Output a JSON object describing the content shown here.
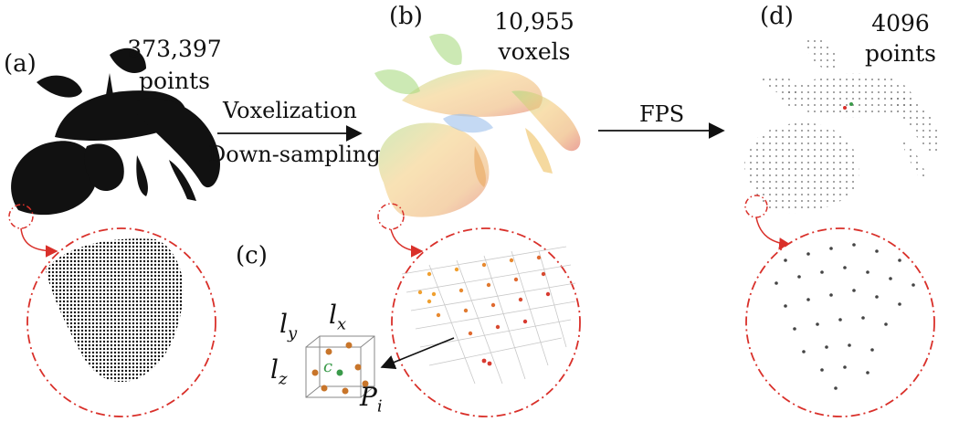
{
  "panels": {
    "a": {
      "label": "(a)",
      "count": "373,397",
      "unit": "points"
    },
    "b": {
      "label": "(b)",
      "count": "10,955",
      "unit": "voxels"
    },
    "c": {
      "label": "(c)"
    },
    "d": {
      "label": "(d)",
      "count": "4096",
      "unit": "points"
    }
  },
  "arrows": {
    "voxelization": "Voxelization",
    "downsampling": "Down-sampling",
    "fps": "FPS"
  },
  "voxel_labels": {
    "ly": "l",
    "ly_sub": "y",
    "lx": "l",
    "lx_sub": "x",
    "lz": "l",
    "lz_sub": "z",
    "c": "c",
    "pi": "P",
    "pi_sub": "i"
  },
  "colors": {
    "ink": "#111111",
    "circle": "#d9302a",
    "voxel_point": "#c8752a",
    "voxel_center": "#3a9a4a",
    "gradient_left": "#e8a040",
    "gradient_right": "#d83a3a"
  }
}
